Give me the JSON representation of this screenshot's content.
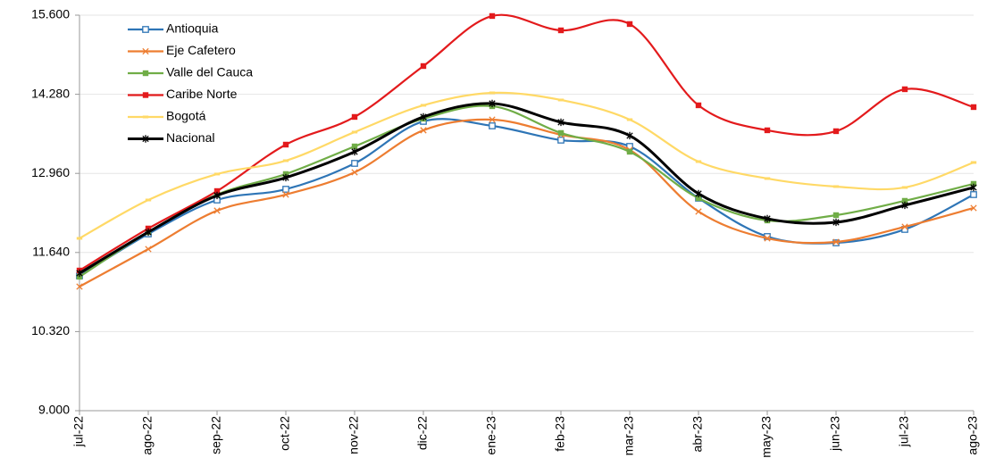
{
  "chart_data": {
    "type": "line",
    "categories": [
      "jul-22",
      "ago-22",
      "sep-22",
      "oct-22",
      "nov-22",
      "dic-22",
      "ene-23",
      "feb-23",
      "mar-23",
      "abr-23",
      "may-23",
      "jun-23",
      "jul-23",
      "ago-23"
    ],
    "ylim": [
      9000,
      15600
    ],
    "yticks": [
      {
        "value": 9000,
        "label": "9.000"
      },
      {
        "value": 10320,
        "label": "10.320"
      },
      {
        "value": 11640,
        "label": "11.640"
      },
      {
        "value": 12960,
        "label": "12.960"
      },
      {
        "value": 14280,
        "label": "14.280"
      },
      {
        "value": 15600,
        "label": "15.600"
      }
    ],
    "grid": true,
    "legend": "upper-left",
    "series": [
      {
        "name": "Antioquia",
        "color": "#2e75b6",
        "marker": "square-open",
        "values": [
          11250,
          11950,
          12516,
          12695,
          13127,
          13828,
          13753,
          13515,
          13410,
          12546,
          11906,
          11801,
          12025,
          12606
        ]
      },
      {
        "name": "Eje Cafetero",
        "color": "#ed7d31",
        "marker": "x",
        "values": [
          11071,
          11697,
          12338,
          12606,
          12978,
          13679,
          13857,
          13604,
          13351,
          12323,
          11876,
          11816,
          12069,
          12382
        ]
      },
      {
        "name": "Valle del Cauca",
        "color": "#70ad47",
        "marker": "square",
        "values": [
          11235,
          11980,
          12606,
          12949,
          13410,
          13872,
          14081,
          13634,
          13321,
          12546,
          12174,
          12263,
          12502,
          12785
        ]
      },
      {
        "name": "Caribe Norte",
        "color": "#e31a1c",
        "marker": "square",
        "values": [
          11339,
          12040,
          12665,
          13440,
          13902,
          14751,
          15586,
          15347,
          15452,
          14096,
          13679,
          13664,
          14364,
          14066
        ]
      },
      {
        "name": "Bogotá",
        "color": "#ffd966",
        "marker": "dash",
        "values": [
          11876,
          12516,
          12949,
          13172,
          13649,
          14096,
          14304,
          14185,
          13857,
          13157,
          12874,
          12740,
          12725,
          13142
        ]
      },
      {
        "name": "Nacional",
        "color": "#000000",
        "marker": "star",
        "values": [
          11294,
          11980,
          12591,
          12889,
          13321,
          13902,
          14126,
          13813,
          13589,
          12621,
          12204,
          12144,
          12427,
          12725
        ]
      }
    ]
  }
}
